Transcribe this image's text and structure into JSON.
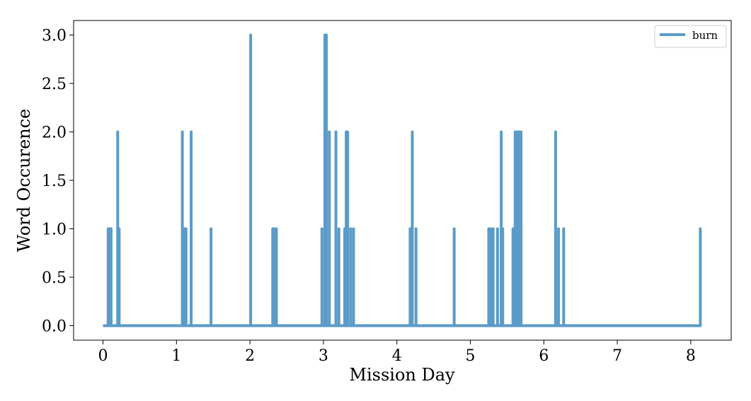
{
  "chart_data": {
    "type": "line",
    "title": "",
    "xlabel": "Mission Day",
    "ylabel": "Word Occurence",
    "xlim": [
      -0.4,
      8.55
    ],
    "ylim": [
      -0.15,
      3.15
    ],
    "xticks": [
      0,
      1,
      2,
      3,
      4,
      5,
      6,
      7,
      8
    ],
    "xtick_labels": [
      "0",
      "1",
      "2",
      "3",
      "4",
      "5",
      "6",
      "7",
      "8"
    ],
    "yticks": [
      0.0,
      0.5,
      1.0,
      1.5,
      2.0,
      2.5,
      3.0
    ],
    "ytick_labels": [
      "0.0",
      "0.5",
      "1.0",
      "1.5",
      "2.0",
      "2.5",
      "3.0"
    ],
    "grid": false,
    "legend_position": "top-right",
    "series": [
      {
        "name": "burn",
        "color": "#5b9bc8",
        "x_range": [
          0.0,
          8.14
        ],
        "baseline": 0,
        "spikes": [
          {
            "x": 0.07,
            "y": 1
          },
          {
            "x": 0.09,
            "y": 1
          },
          {
            "x": 0.11,
            "y": 1
          },
          {
            "x": 0.2,
            "y": 2
          },
          {
            "x": 0.22,
            "y": 1
          },
          {
            "x": 1.08,
            "y": 2
          },
          {
            "x": 1.11,
            "y": 1
          },
          {
            "x": 1.13,
            "y": 1
          },
          {
            "x": 1.2,
            "y": 2
          },
          {
            "x": 1.47,
            "y": 1
          },
          {
            "x": 2.01,
            "y": 3
          },
          {
            "x": 2.31,
            "y": 1
          },
          {
            "x": 2.33,
            "y": 1
          },
          {
            "x": 2.36,
            "y": 1
          },
          {
            "x": 2.98,
            "y": 1
          },
          {
            "x": 3.02,
            "y": 3
          },
          {
            "x": 3.04,
            "y": 3
          },
          {
            "x": 3.08,
            "y": 2
          },
          {
            "x": 3.17,
            "y": 2
          },
          {
            "x": 3.21,
            "y": 1
          },
          {
            "x": 3.29,
            "y": 1
          },
          {
            "x": 3.31,
            "y": 2
          },
          {
            "x": 3.33,
            "y": 2
          },
          {
            "x": 3.37,
            "y": 1
          },
          {
            "x": 3.41,
            "y": 1
          },
          {
            "x": 4.18,
            "y": 1
          },
          {
            "x": 4.21,
            "y": 2
          },
          {
            "x": 4.26,
            "y": 1
          },
          {
            "x": 4.78,
            "y": 1
          },
          {
            "x": 5.25,
            "y": 1
          },
          {
            "x": 5.28,
            "y": 1
          },
          {
            "x": 5.31,
            "y": 1
          },
          {
            "x": 5.37,
            "y": 1
          },
          {
            "x": 5.42,
            "y": 2
          },
          {
            "x": 5.44,
            "y": 1
          },
          {
            "x": 5.58,
            "y": 1
          },
          {
            "x": 5.61,
            "y": 2
          },
          {
            "x": 5.63,
            "y": 2
          },
          {
            "x": 5.65,
            "y": 2
          },
          {
            "x": 5.66,
            "y": 2
          },
          {
            "x": 5.69,
            "y": 2
          },
          {
            "x": 6.16,
            "y": 2
          },
          {
            "x": 6.2,
            "y": 1
          },
          {
            "x": 6.27,
            "y": 1
          },
          {
            "x": 8.13,
            "y": 1
          }
        ]
      }
    ]
  }
}
